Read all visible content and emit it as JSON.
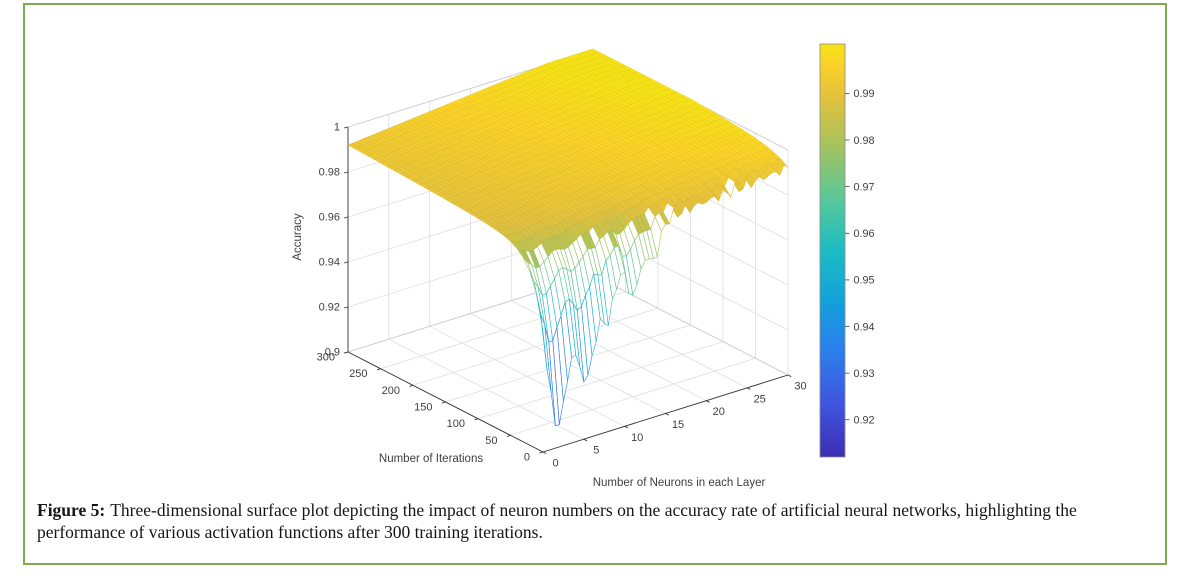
{
  "page": {
    "border_color": "#7cab50",
    "background": "#ffffff"
  },
  "caption": {
    "label": "Figure 5:",
    "text": "Three-dimensional surface plot depicting the impact of neuron numbers on the accuracy rate of artificial neural networks, highlighting the performance of various activation functions after 300 training iterations."
  },
  "chart_data": {
    "type": "surface",
    "title": "",
    "xlabel": "Number of Neurons in each Layer",
    "ylabel": "Number of Iterations",
    "zlabel": "Accuracy",
    "xlim": [
      0,
      30
    ],
    "ylim": [
      0,
      300
    ],
    "zlim": [
      0.9,
      1.0
    ],
    "x_ticks": [
      0,
      5,
      10,
      15,
      20,
      25,
      30
    ],
    "y_ticks": [
      0,
      50,
      100,
      150,
      200,
      250,
      300
    ],
    "z_ticks": [
      0.9,
      0.92,
      0.94,
      0.96,
      0.98,
      1
    ],
    "z_tick_labels": [
      "0.9",
      "0.92",
      "0.94",
      "0.96",
      "0.98",
      "1"
    ],
    "grid": true,
    "legend": "none",
    "colorbar": {
      "position": "right",
      "ticks": [
        0.92,
        0.93,
        0.94,
        0.95,
        0.96,
        0.97,
        0.98,
        0.99
      ],
      "limits": [
        0.912,
        1.0006
      ]
    },
    "colormap": {
      "name": "parula",
      "stops": [
        [
          0.0,
          "#3b2fb3"
        ],
        [
          0.13,
          "#4055e0"
        ],
        [
          0.25,
          "#2d7cec"
        ],
        [
          0.37,
          "#139fdc"
        ],
        [
          0.5,
          "#1cbcc3"
        ],
        [
          0.62,
          "#57c79b"
        ],
        [
          0.75,
          "#a3c35f"
        ],
        [
          0.87,
          "#e4c13c"
        ],
        [
          0.95,
          "#fbd227"
        ],
        [
          1.0,
          "#f7e315"
        ]
      ]
    },
    "surface_model": {
      "description": "Accuracy plateau near 0.99-1.0 for high iteration counts; sharp accuracy funnels (down to ~0.91) at low iteration counts for small neuron numbers; jagged shallow dips at the low-iteration edge for larger neuron counts.",
      "base": {
        "a0": 0.9885,
        "slope_n": 0.0105,
        "slope_it": 0.0035,
        "sag": 0.0045,
        "sag_tau": 50
      },
      "dips": [
        {
          "center": 1.8,
          "depth": 0.072,
          "sigma": 1.3,
          "tau": 16
        },
        {
          "center": 5.3,
          "depth": 0.055,
          "sigma": 1.1,
          "tau": 15
        },
        {
          "center": 8.0,
          "depth": 0.032,
          "sigma": 0.95,
          "tau": 14
        },
        {
          "center": 11.0,
          "depth": 0.028,
          "sigma": 0.9,
          "tau": 15
        },
        {
          "center": 13.5,
          "depth": 0.016,
          "sigma": 0.8,
          "tau": 12
        }
      ],
      "jag": {
        "amp1": 0.004,
        "freq1": 2.1,
        "phase1": 0.8,
        "amp2": 0.0015,
        "freq2": 5.0,
        "tau": 15
      },
      "grid": {
        "n_step": 0.5,
        "it_step": 10
      },
      "peak_accuracy": 1.0,
      "min_accuracy": 0.912
    }
  }
}
